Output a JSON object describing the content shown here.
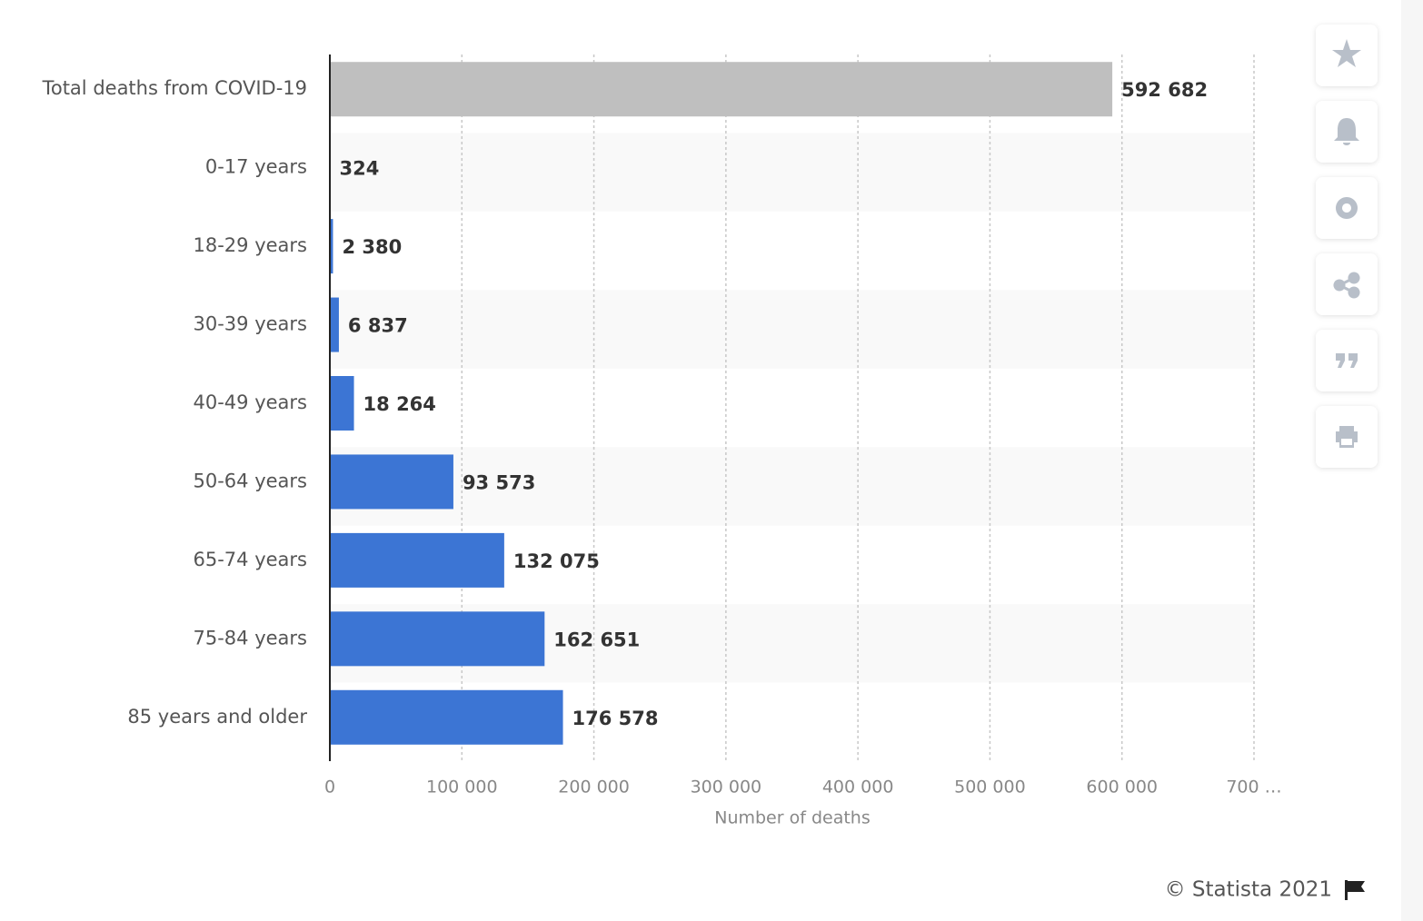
{
  "chart_data": {
    "type": "bar",
    "orientation": "horizontal",
    "categories": [
      "Total deaths from COVID-19",
      "0-17 years",
      "18-29 years",
      "30-39 years",
      "40-49 years",
      "50-64 years",
      "65-74 years",
      "75-84 years",
      "85 years and older"
    ],
    "values": [
      592682,
      324,
      2380,
      6837,
      18264,
      93573,
      132075,
      162651,
      176578
    ],
    "value_labels": [
      "592 682",
      "324",
      "2 380",
      "6 837",
      "18 264",
      "93 573",
      "132 075",
      "162 651",
      "176 578"
    ],
    "colors": [
      "#bfbfbf",
      "#3c75d4",
      "#3c75d4",
      "#3c75d4",
      "#3c75d4",
      "#3c75d4",
      "#3c75d4",
      "#3c75d4",
      "#3c75d4"
    ],
    "xlabel": "Number of deaths",
    "xlim": [
      0,
      700000
    ],
    "xticks": [
      0,
      {
        "value": 100000,
        "label": "100 000"
      },
      {
        "value": 200000,
        "label": "200 000"
      },
      {
        "value": 300000,
        "label": "300 000"
      },
      {
        "value": 400000,
        "label": "400 000"
      },
      {
        "value": 500000,
        "label": "500 000"
      },
      {
        "value": 600000,
        "label": "600 000"
      },
      {
        "value": 700000,
        "label": "700 …"
      }
    ],
    "grid": true,
    "source": "© Statista 2021"
  }
}
